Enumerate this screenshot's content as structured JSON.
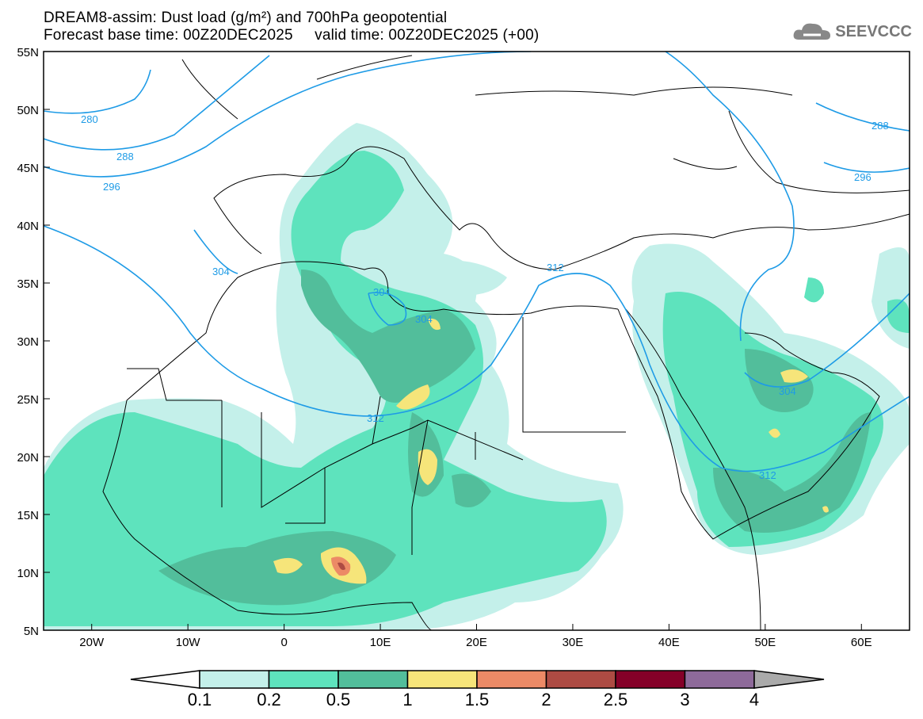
{
  "header": {
    "title_line1": "DREAM8-assim: Dust load (g/m²) and 700hPa geopotential",
    "title_line2": "Forecast base time: 00Z20DEC2025     valid time: 00Z20DEC2025 (+00)",
    "logo_text": "SEEVCCC"
  },
  "map": {
    "lat_ticks": [
      "55N",
      "50N",
      "45N",
      "40N",
      "35N",
      "30N",
      "25N",
      "20N",
      "15N",
      "10N",
      "5N"
    ],
    "lon_ticks": [
      "20W",
      "10W",
      "0",
      "10E",
      "20E",
      "30E",
      "40E",
      "50E",
      "60E"
    ],
    "lon_range": [
      -25,
      65
    ],
    "lat_range": [
      5,
      55
    ],
    "contour_labels": [
      "280",
      "288",
      "296",
      "304",
      "304",
      "304",
      "312",
      "312",
      "304",
      "288",
      "296",
      "312"
    ],
    "contour_color": "#1e9be6"
  },
  "colorbar": {
    "labels": [
      "0.1",
      "0.2",
      "0.5",
      "1",
      "1.5",
      "2",
      "2.5",
      "3",
      "4"
    ],
    "colors": [
      "#c4f0ea",
      "#5ee3bd",
      "#52be9b",
      "#f6e57a",
      "#ec8a66",
      "#ad4b43",
      "#850028",
      "#8e6a9a"
    ],
    "over_color": "#aaaaaa",
    "under_color": "#ffffff"
  }
}
